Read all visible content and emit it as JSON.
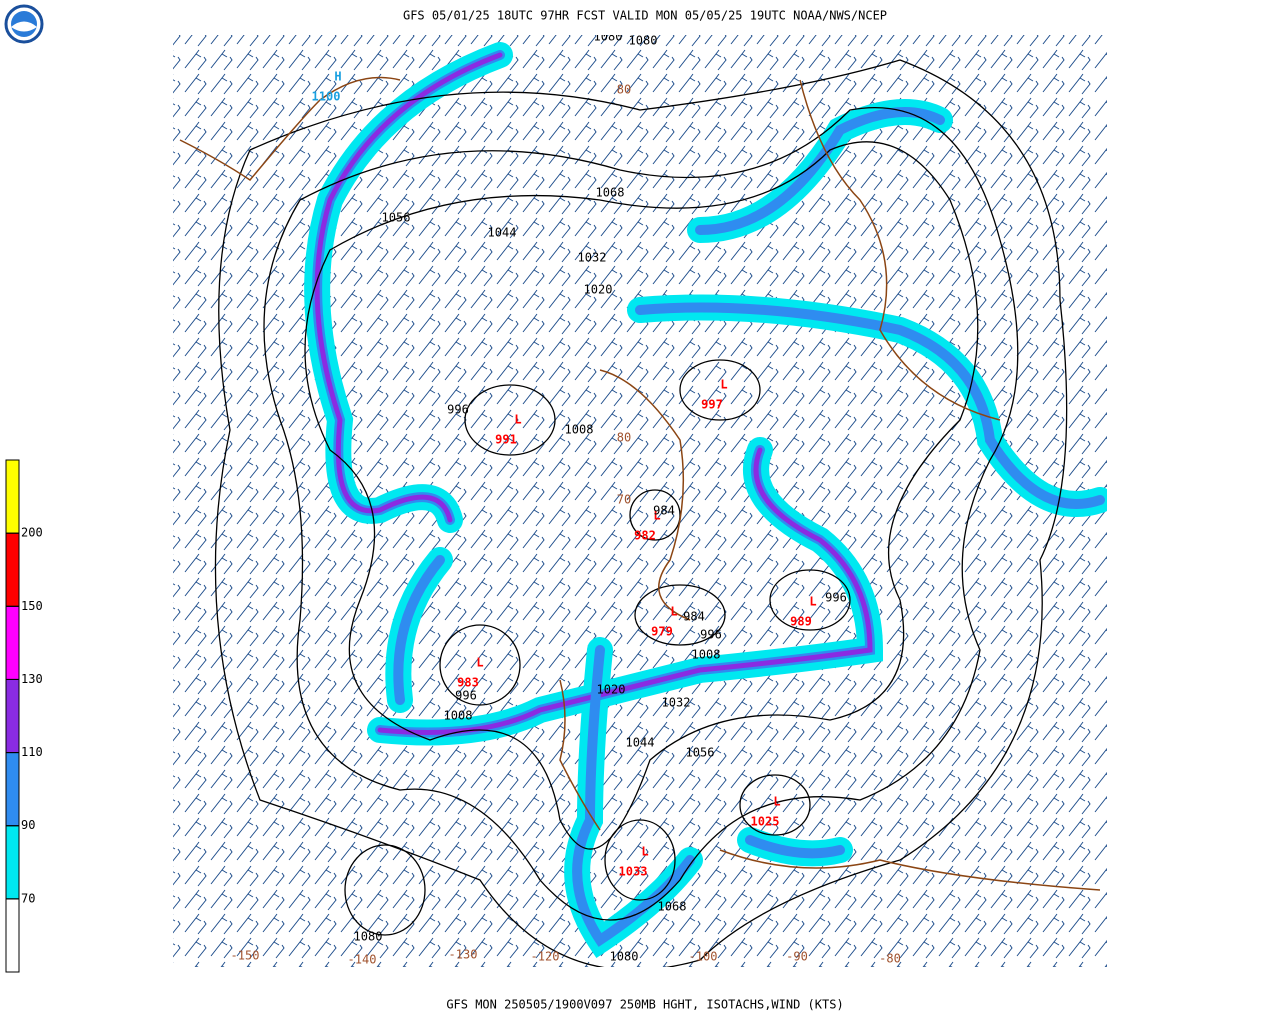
{
  "header": {
    "title": "GFS 05/01/25 18UTC 97HR FCST VALID MON 05/05/25 19UTC NOAA/NWS/NCEP"
  },
  "footer": "GFS MON 250505/1900V097 250MB HGHT, ISOTACHS,WIND (KTS)",
  "legend": {
    "levels": [
      70,
      90,
      110,
      130,
      150,
      200
    ],
    "colors": [
      "#ffffff",
      "#00e8f0",
      "#2f8cf0",
      "#8a2be2",
      "#ff00ff",
      "#ff0000",
      "#ffff00"
    ]
  },
  "centers": [
    {
      "letter": "H",
      "value": 1100
    },
    {
      "letter": "L",
      "value": 991
    },
    {
      "letter": "L",
      "value": 997
    },
    {
      "letter": "L",
      "value": 982
    },
    {
      "letter": "L",
      "value": 979
    },
    {
      "letter": "L",
      "value": 989
    },
    {
      "letter": "L",
      "value": 983
    },
    {
      "letter": "L",
      "value": 1025
    },
    {
      "letter": "L",
      "value": 1033
    }
  ],
  "contour_labels": [
    1080,
    1080,
    1068,
    1056,
    1044,
    1032,
    1020,
    996,
    1008,
    984,
    984,
    996,
    1008,
    996,
    996,
    1008,
    1020,
    1032,
    1044,
    1056,
    1068,
    1080,
    1080
  ],
  "longitude_labels": [
    -150,
    -140,
    -130,
    -120,
    -100,
    -90,
    -80
  ],
  "latitude_labels": [
    80,
    80,
    70
  ]
}
